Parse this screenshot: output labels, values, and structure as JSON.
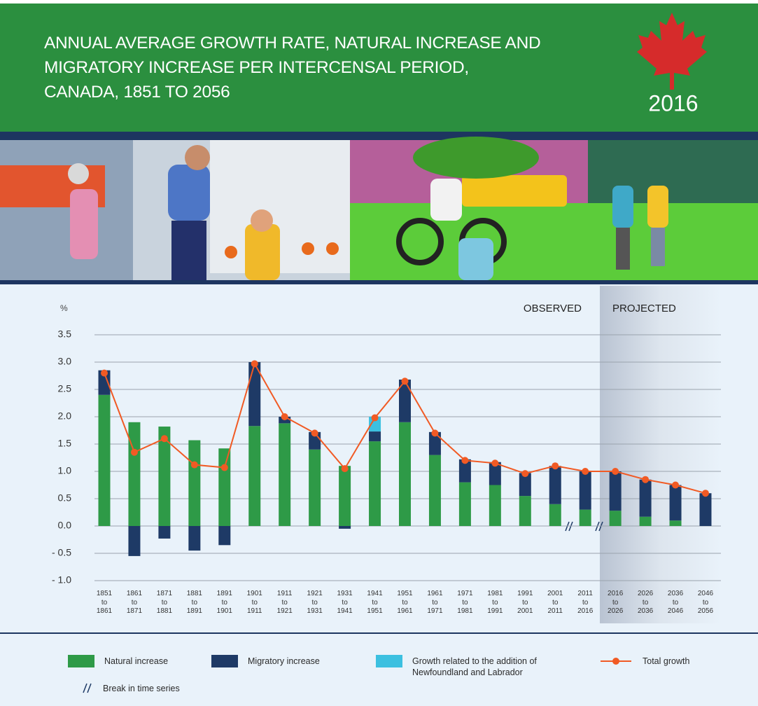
{
  "chart_data": {
    "type": "bar",
    "stacked": true,
    "title": "ANNUAL AVERAGE GROWTH RATE, NATURAL INCREASE AND MIGRATORY INCREASE PER INTERCENSAL PERIOD, CANADA, 1851 TO 2056",
    "logo_text": "2016",
    "y_label": "%",
    "annotations": [
      "OBSERVED",
      "PROJECTED"
    ],
    "break_label": "Break in time series",
    "categories": [
      "1851 to 1861",
      "1861 to 1871",
      "1871 to 1881",
      "1881 to 1891",
      "1891 to 1901",
      "1901 to 1911",
      "1911 to 1921",
      "1921 to 1931",
      "1931 to 1941",
      "1941 to 1951",
      "1951 to 1961",
      "1961 to 1971",
      "1971 to 1981",
      "1981 to 1991",
      "1991 to 2001",
      "2001 to 2011",
      "2011 to 2016",
      "2016 to 2026",
      "2026 to 2036",
      "2036 to 2046",
      "2046 to 2056"
    ],
    "series": [
      {
        "name": "Natural increase",
        "color": "#2e9a47",
        "values": [
          2.4,
          1.9,
          1.82,
          1.57,
          1.42,
          1.83,
          1.88,
          1.4,
          1.1,
          1.55,
          1.9,
          1.3,
          0.8,
          0.75,
          0.55,
          0.4,
          0.3,
          0.28,
          0.17,
          0.1,
          0
        ]
      },
      {
        "name": "Migratory increase",
        "color": "#1e3a66",
        "values": [
          0.45,
          -0.55,
          -0.23,
          -0.45,
          -0.35,
          1.17,
          0.12,
          0.32,
          -0.05,
          0.18,
          0.78,
          0.42,
          0.42,
          0.42,
          0.42,
          0.7,
          0.7,
          0.72,
          0.68,
          0.65,
          0.6
        ]
      },
      {
        "name": "Growth related to the addition of Newfoundland and Labrador",
        "color": "#3cc0e0",
        "values": [
          0,
          0,
          0,
          0,
          0,
          0,
          0,
          0,
          0,
          0.27,
          0,
          0,
          0,
          0,
          0,
          0,
          0,
          0,
          0,
          0,
          0
        ]
      },
      {
        "name": "Total growth",
        "type": "line",
        "color": "#f15a24",
        "values": [
          2.8,
          1.35,
          1.6,
          1.12,
          1.07,
          2.97,
          2.0,
          1.7,
          1.05,
          1.98,
          2.65,
          1.7,
          1.2,
          1.15,
          0.96,
          1.1,
          1.0,
          1.0,
          0.85,
          0.75,
          0.6
        ]
      }
    ],
    "ylim": [
      -1,
      3.5
    ],
    "yticks": [
      {
        "value": -1,
        "label": "- 1.0"
      },
      {
        "value": -0.5,
        "label": "- 0.5"
      },
      {
        "value": 0,
        "label": "0.0"
      },
      0.5,
      {
        "value": 1,
        "label": "1.0"
      },
      1.5,
      {
        "value": 2,
        "label": "2.0"
      },
      2.5,
      {
        "value": 3,
        "label": "3.0"
      },
      3.5
    ],
    "grid": true
  }
}
